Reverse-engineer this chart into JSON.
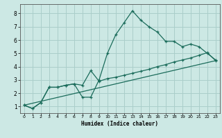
{
  "title": "",
  "xlabel": "Humidex (Indice chaleur)",
  "background_color": "#cce8e4",
  "grid_color": "#aaceca",
  "line_color": "#1a6b5a",
  "xlim": [
    -0.5,
    23.5
  ],
  "ylim": [
    0.5,
    8.7
  ],
  "xticks": [
    0,
    1,
    2,
    3,
    4,
    5,
    6,
    7,
    8,
    9,
    10,
    11,
    12,
    13,
    14,
    15,
    16,
    17,
    18,
    19,
    20,
    21,
    22,
    23
  ],
  "yticks": [
    1,
    2,
    3,
    4,
    5,
    6,
    7,
    8
  ],
  "line1_x": [
    0,
    1,
    2,
    3,
    4,
    5,
    6,
    7,
    8,
    9,
    10,
    11,
    12,
    13,
    14,
    15,
    16,
    17,
    18,
    19,
    20,
    21,
    22,
    23
  ],
  "line1_y": [
    1.1,
    0.85,
    1.3,
    2.45,
    2.45,
    2.6,
    2.7,
    1.7,
    1.7,
    3.0,
    5.0,
    6.4,
    7.3,
    8.2,
    7.5,
    7.0,
    6.6,
    5.9,
    5.9,
    5.5,
    5.7,
    5.5,
    5.0,
    4.5
  ],
  "line2_x": [
    0,
    1,
    2,
    3,
    4,
    5,
    6,
    7,
    8,
    9,
    10,
    11,
    12,
    13,
    14,
    15,
    16,
    17,
    18,
    19,
    20,
    21,
    22,
    23
  ],
  "line2_y": [
    1.1,
    0.85,
    1.3,
    2.45,
    2.45,
    2.6,
    2.7,
    2.6,
    3.7,
    2.9,
    3.1,
    3.2,
    3.35,
    3.5,
    3.65,
    3.8,
    4.0,
    4.15,
    4.35,
    4.5,
    4.65,
    4.85,
    5.05,
    4.45
  ],
  "line3_x": [
    0,
    23
  ],
  "line3_y": [
    1.1,
    4.45
  ]
}
